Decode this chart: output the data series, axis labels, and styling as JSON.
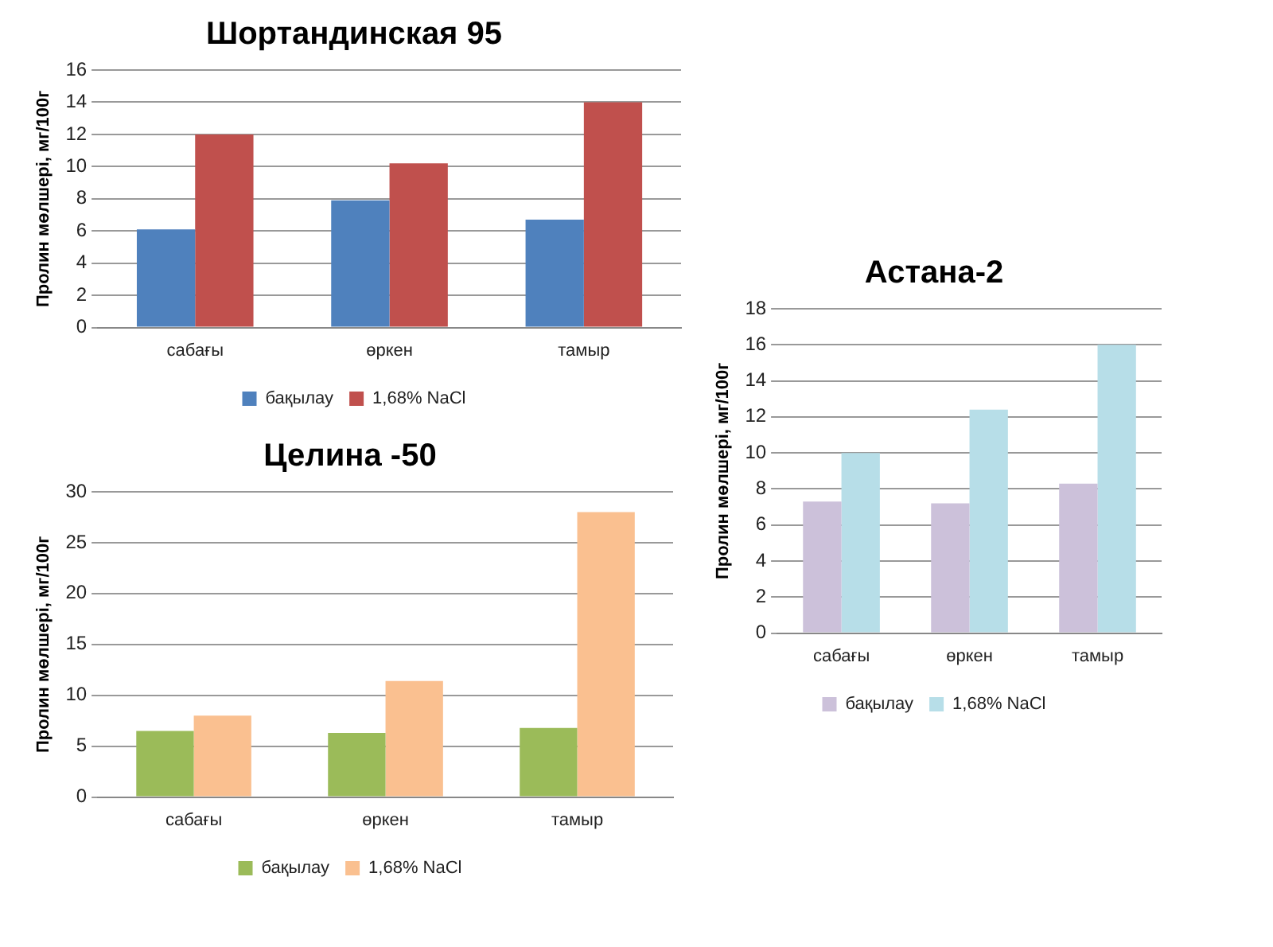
{
  "chart_data": [
    {
      "type": "bar",
      "title": "Шортандинская 95",
      "ylabel": "Пролин мөлшері, мг/100г",
      "categories": [
        "сабағы",
        "өркен",
        "тамыр"
      ],
      "series": [
        {
          "name": "бақылау",
          "color": "#4f81bd",
          "values": [
            6.1,
            7.9,
            6.7
          ]
        },
        {
          "name": "1,68% NaCl",
          "color": "#c0504d",
          "values": [
            12,
            10.2,
            14
          ]
        }
      ],
      "ylim": [
        0,
        16
      ],
      "yticks": [
        0,
        2,
        4,
        6,
        8,
        10,
        12,
        14,
        16
      ],
      "grid": "y",
      "legend": "bottom"
    },
    {
      "type": "bar",
      "title": "Астана-2",
      "ylabel": "Пролин мөлшері, мг/100г",
      "categories": [
        "сабағы",
        "өркен",
        "тамыр"
      ],
      "series": [
        {
          "name": "бақылау",
          "color": "#ccc1da",
          "values": [
            7.3,
            7.2,
            8.3
          ]
        },
        {
          "name": "1,68% NaCl",
          "color": "#b7dee8",
          "values": [
            10,
            12.4,
            16
          ]
        }
      ],
      "ylim": [
        0,
        18
      ],
      "yticks": [
        0,
        2,
        4,
        6,
        8,
        10,
        12,
        14,
        16,
        18
      ],
      "grid": "y",
      "legend": "bottom"
    },
    {
      "type": "bar",
      "title": "Целина -50",
      "ylabel": "Пролин мөлшері, мг/100г",
      "categories": [
        "сабағы",
        "өркен",
        "тамыр"
      ],
      "series": [
        {
          "name": "бақылау",
          "color": "#9bbb59",
          "values": [
            6.5,
            6.3,
            6.8
          ]
        },
        {
          "name": "1,68% NaCl",
          "color": "#fac090",
          "values": [
            8,
            11.4,
            28
          ]
        }
      ],
      "ylim": [
        0,
        30
      ],
      "yticks": [
        0,
        5,
        10,
        15,
        20,
        25,
        30
      ],
      "grid": "y",
      "legend": "bottom"
    }
  ]
}
